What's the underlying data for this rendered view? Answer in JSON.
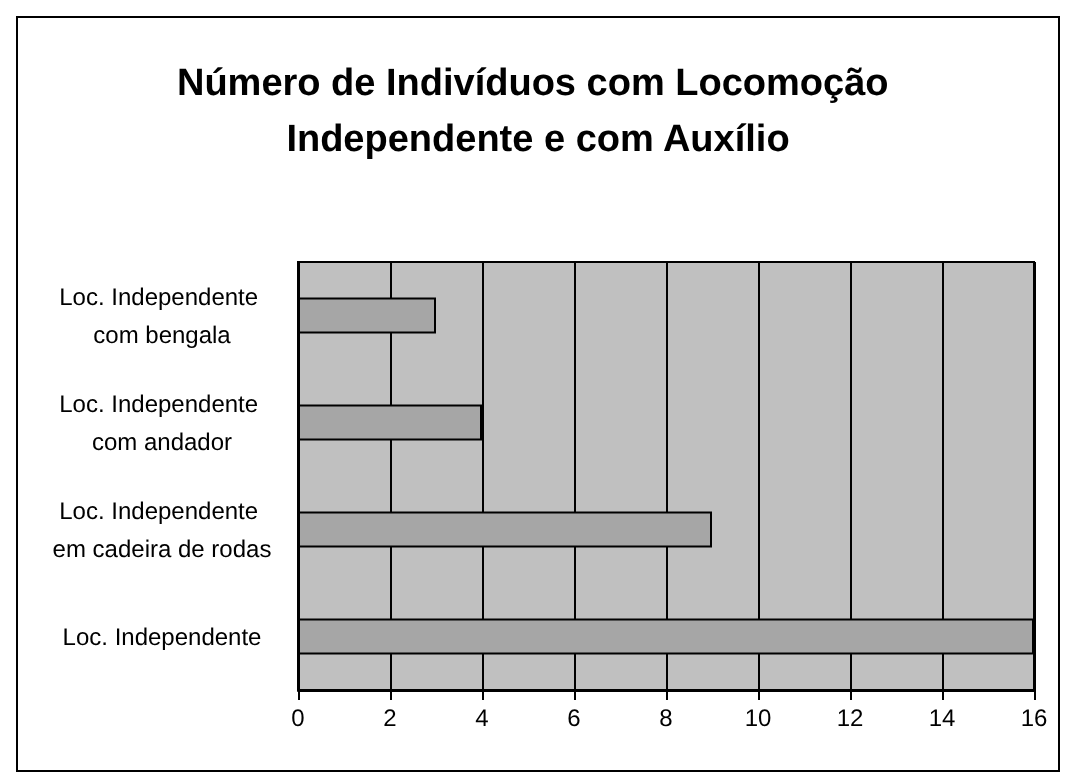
{
  "chart_data": {
    "type": "bar",
    "orientation": "horizontal",
    "title": "Número de Indivíduos com Locomoção Independente e com Auxílio",
    "categories": [
      "Loc. Independente com bengala",
      "Loc. Independente com andador",
      "Loc. Independente em cadeira de rodas",
      "Loc. Independente"
    ],
    "values": [
      3,
      4,
      9,
      16
    ],
    "color": "#a6a6a6",
    "xlim": [
      0,
      16
    ],
    "xticks": [
      0,
      2,
      4,
      6,
      8,
      10,
      12,
      14,
      16
    ],
    "grid": "x"
  }
}
